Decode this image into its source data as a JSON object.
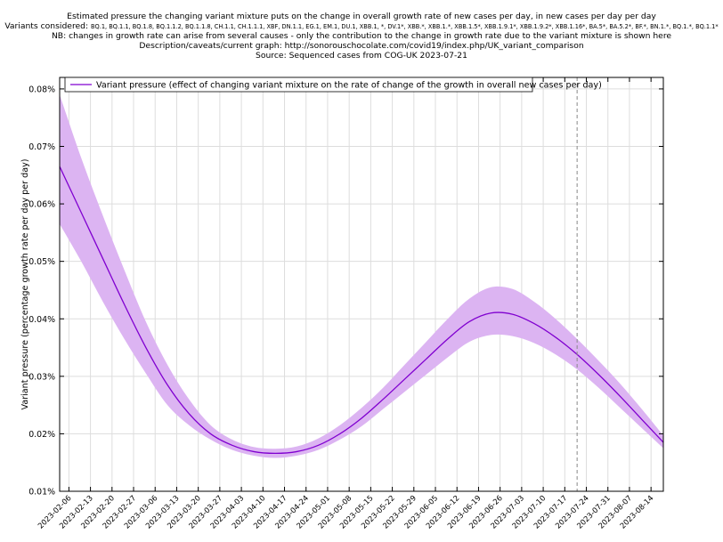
{
  "header": {
    "title": "Estimated pressure the changing variant mixture puts on the change in overall growth rate of new cases per day, in new cases per day per day",
    "variants_prefix": "Variants considered:",
    "variants_list": "BQ.1, BQ.1.1, BQ.1.8, BQ.1.1.2, BQ.1.1.8, CH.1.1, CH.1.1.1, XBF, DN.1.1, EG.1, EM.1, DU.1, XBB.1, *, DV.1*, XBB.*, XBB.1.*, XBB.1.5*, XBB.1.9.1*, XBB.1.9.2*, XBB.1.16*, BA.5*, BA.5.2*, BF.*, BN.1.*, BQ.1.*, BQ.1.1*",
    "note": "NB: changes in growth rate can arise from several causes - only the contribution to the change in growth rate due to the variant mixture is shown here",
    "description": "Description/caveats/current graph: http://sonorouschocolate.com/covid19/index.php/UK_variant_comparison",
    "source": "Source: Sequenced cases from COG-UK 2023-07-21"
  },
  "chart_data": {
    "type": "line",
    "ylabel": "Variant pressure (percentage growth rate per day per day)",
    "xlabel": "",
    "ylim": [
      0.01,
      0.082
    ],
    "yticks": [
      0.01,
      0.02,
      0.03,
      0.04,
      0.05,
      0.06,
      0.07,
      0.08
    ],
    "ytick_labels": [
      "0.01%",
      "0.02%",
      "0.03%",
      "0.04%",
      "0.05%",
      "0.06%",
      "0.07%",
      "0.08%"
    ],
    "xlim": [
      "2023-02-03",
      "2023-08-18"
    ],
    "xticks": [
      "2023-02-06",
      "2023-02-13",
      "2023-02-20",
      "2023-02-27",
      "2023-03-06",
      "2023-03-13",
      "2023-03-20",
      "2023-03-27",
      "2023-04-03",
      "2023-04-10",
      "2023-04-17",
      "2023-04-24",
      "2023-05-01",
      "2023-05-08",
      "2023-05-15",
      "2023-05-22",
      "2023-05-29",
      "2023-06-05",
      "2023-06-12",
      "2023-06-19",
      "2023-06-26",
      "2023-07-03",
      "2023-07-10",
      "2023-07-17",
      "2023-07-24",
      "2023-07-31",
      "2023-08-07",
      "2023-08-14"
    ],
    "grid": true,
    "legend_position": "top-left",
    "vertical_marker_date": "2023-07-21",
    "colors": {
      "line": "#8000d0",
      "band": "#dcb4f2",
      "marker": "#888888",
      "grid": "#dddddd"
    },
    "series": [
      {
        "name": "Variant pressure (effect of changing variant mixture on the rate of change of the growth in overall new cases per day)",
        "x": [
          "2023-02-03",
          "2023-02-10",
          "2023-02-17",
          "2023-02-24",
          "2023-03-03",
          "2023-03-10",
          "2023-03-17",
          "2023-03-24",
          "2023-03-31",
          "2023-04-07",
          "2023-04-14",
          "2023-04-21",
          "2023-04-28",
          "2023-05-05",
          "2023-05-12",
          "2023-05-19",
          "2023-05-26",
          "2023-06-02",
          "2023-06-09",
          "2023-06-16",
          "2023-06-23",
          "2023-06-30",
          "2023-07-07",
          "2023-07-14",
          "2023-07-21",
          "2023-07-28",
          "2023-08-04",
          "2023-08-11",
          "2023-08-18"
        ],
        "values": [
          0.0665,
          0.0585,
          0.0505,
          0.0425,
          0.035,
          0.0285,
          0.0235,
          0.02,
          0.018,
          0.0169,
          0.0166,
          0.0169,
          0.018,
          0.02,
          0.0227,
          0.026,
          0.0295,
          0.033,
          0.0365,
          0.0395,
          0.041,
          0.0408,
          0.0392,
          0.0368,
          0.0338,
          0.0303,
          0.0265,
          0.0225,
          0.0185
        ],
        "lower": [
          0.0565,
          0.05,
          0.043,
          0.0365,
          0.0305,
          0.025,
          0.0215,
          0.019,
          0.0172,
          0.0162,
          0.0158,
          0.0162,
          0.0172,
          0.019,
          0.0213,
          0.0243,
          0.0273,
          0.0303,
          0.0333,
          0.036,
          0.0372,
          0.037,
          0.0358,
          0.0338,
          0.0312,
          0.028,
          0.0245,
          0.021,
          0.0175
        ],
        "upper": [
          0.079,
          0.068,
          0.058,
          0.0485,
          0.0395,
          0.032,
          0.026,
          0.0215,
          0.019,
          0.0177,
          0.0174,
          0.0178,
          0.0192,
          0.0215,
          0.0245,
          0.028,
          0.032,
          0.036,
          0.04,
          0.0435,
          0.0455,
          0.0452,
          0.043,
          0.04,
          0.0365,
          0.0327,
          0.0287,
          0.0243,
          0.0197
        ]
      }
    ]
  }
}
